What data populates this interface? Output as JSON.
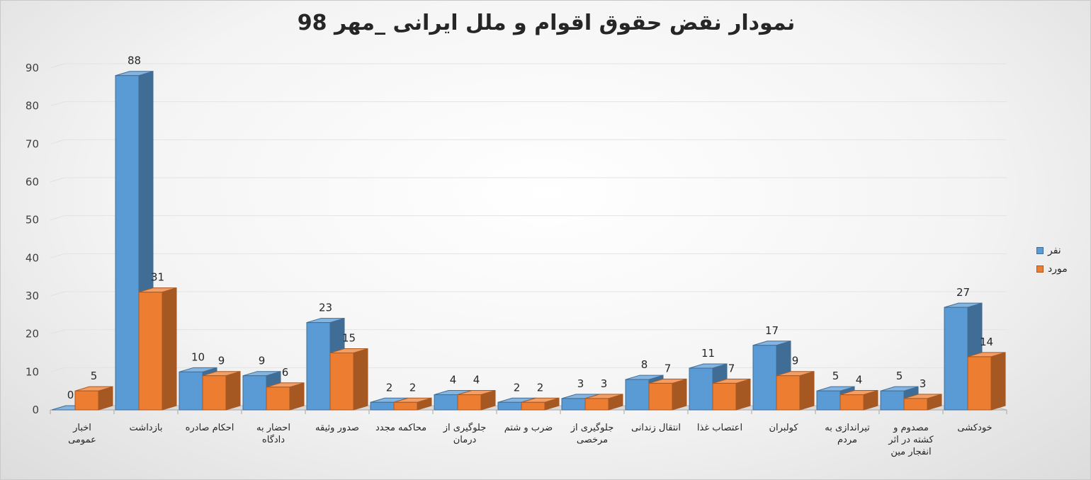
{
  "chart_data": {
    "type": "bar",
    "title": "نمودار نقض حقوق اقوام و ملل ایرانی _مهر 98",
    "xlabel": "",
    "ylabel": "",
    "ylim": [
      0,
      90
    ],
    "yticks": [
      0,
      10,
      20,
      30,
      40,
      50,
      60,
      70,
      80,
      90
    ],
    "grid": true,
    "legend_position": "right",
    "categories": [
      [
        "اخبار",
        "عمومی"
      ],
      [
        "بازداشت"
      ],
      [
        "احکام صادره"
      ],
      [
        "احضار به",
        "دادگاه"
      ],
      [
        "صدور وثیقه"
      ],
      [
        "محاکمه مجدد"
      ],
      [
        "جلوگیری از",
        "درمان"
      ],
      [
        "ضرب و شتم"
      ],
      [
        "جلوگیری از",
        "مرخصی"
      ],
      [
        "انتقال زندانی"
      ],
      [
        "اعتصاب غذا"
      ],
      [
        "کولبران"
      ],
      [
        "تیراندازی به",
        "مردم"
      ],
      [
        "مصدوم و",
        "کشته در اثر",
        "انفجار مین"
      ],
      [
        "خودکشی"
      ]
    ],
    "series": [
      {
        "name": "نفر",
        "color": "#5b9bd5",
        "values": [
          0,
          88,
          10,
          9,
          23,
          2,
          4,
          2,
          3,
          8,
          11,
          17,
          5,
          5,
          27
        ]
      },
      {
        "name": "مورد",
        "color": "#ed7d31",
        "values": [
          5,
          31,
          9,
          6,
          15,
          2,
          4,
          2,
          3,
          7,
          7,
          9,
          4,
          3,
          14
        ]
      }
    ]
  }
}
